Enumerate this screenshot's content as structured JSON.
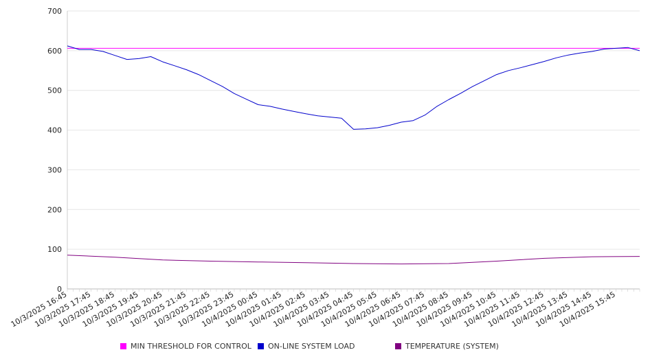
{
  "chart_data": {
    "type": "line",
    "title": "",
    "xlabel": "",
    "ylabel": "",
    "ylim": [
      0,
      700
    ],
    "yticks": [
      0,
      100,
      200,
      300,
      400,
      500,
      600,
      700
    ],
    "grid": true,
    "legend_position": "bottom",
    "x_start": "10/3/2025 16:45",
    "x_end": "10/4/2025 16:45",
    "x_tick_labels": [
      "10/3/2025 16:45",
      "10/3/2025 17:45",
      "10/3/2025 18:45",
      "10/3/2025 19:45",
      "10/3/2025 20:45",
      "10/3/2025 21:45",
      "10/3/2025 22:45",
      "10/3/2025 23:45",
      "10/4/2025 00:45",
      "10/4/2025 01:45",
      "10/4/2025 02:45",
      "10/4/2025 03:45",
      "10/4/2025 04:45",
      "10/4/2025 05:45",
      "10/4/2025 06:45",
      "10/4/2025 07:45",
      "10/4/2025 08:45",
      "10/4/2025 09:45",
      "10/4/2025 10:45",
      "10/4/2025 11:45",
      "10/4/2025 12:45",
      "10/4/2025 13:45",
      "10/4/2025 14:45",
      "10/4/2025 15:45"
    ],
    "series": [
      {
        "name": "MIN THRESHOLD FOR CONTROL",
        "color": "#ff00ff",
        "x": [
          "10/3/2025 16:45",
          "10/4/2025 16:45"
        ],
        "values": [
          606,
          606
        ]
      },
      {
        "name": "ON-LINE SYSTEM LOAD",
        "color": "#0000cc",
        "x": [
          "10/3/2025 16:45",
          "10/3/2025 17:15",
          "10/3/2025 17:45",
          "10/3/2025 18:15",
          "10/3/2025 18:45",
          "10/3/2025 19:15",
          "10/3/2025 19:45",
          "10/3/2025 20:15",
          "10/3/2025 20:45",
          "10/3/2025 21:15",
          "10/3/2025 21:45",
          "10/3/2025 22:15",
          "10/3/2025 22:45",
          "10/3/2025 23:15",
          "10/3/2025 23:45",
          "10/4/2025 00:15",
          "10/4/2025 00:45",
          "10/4/2025 01:15",
          "10/4/2025 01:45",
          "10/4/2025 02:15",
          "10/4/2025 02:45",
          "10/4/2025 03:15",
          "10/4/2025 03:45",
          "10/4/2025 04:15",
          "10/4/2025 04:45",
          "10/4/2025 05:15",
          "10/4/2025 05:45",
          "10/4/2025 06:15",
          "10/4/2025 06:45",
          "10/4/2025 07:15",
          "10/4/2025 07:45",
          "10/4/2025 08:15",
          "10/4/2025 08:45",
          "10/4/2025 09:15",
          "10/4/2025 09:45",
          "10/4/2025 10:15",
          "10/4/2025 10:45",
          "10/4/2025 11:15",
          "10/4/2025 11:45",
          "10/4/2025 12:15",
          "10/4/2025 12:45",
          "10/4/2025 13:15",
          "10/4/2025 13:45",
          "10/4/2025 14:15",
          "10/4/2025 14:45",
          "10/4/2025 15:15",
          "10/4/2025 15:45",
          "10/4/2025 16:15",
          "10/4/2025 16:45"
        ],
        "values": [
          612,
          603,
          603,
          598,
          588,
          578,
          580,
          585,
          572,
          562,
          552,
          540,
          525,
          510,
          492,
          478,
          464,
          460,
          453,
          447,
          441,
          436,
          433,
          430,
          402,
          403,
          406,
          412,
          420,
          424,
          438,
          460,
          477,
          493,
          510,
          525,
          540,
          550,
          557,
          565,
          573,
          582,
          589,
          594,
          598,
          604,
          606,
          608,
          600
        ]
      },
      {
        "name": "TEMPERATURE (SYSTEM)",
        "color": "#800080",
        "x": [
          "10/3/2025 16:45",
          "10/3/2025 18:45",
          "10/3/2025 20:45",
          "10/3/2025 22:45",
          "10/4/2025 00:45",
          "10/4/2025 02:45",
          "10/4/2025 04:45",
          "10/4/2025 06:45",
          "10/4/2025 08:45",
          "10/4/2025 10:45",
          "10/4/2025 12:45",
          "10/4/2025 14:45",
          "10/4/2025 16:45"
        ],
        "values": [
          85,
          80,
          73,
          70,
          68,
          66,
          64,
          63,
          64,
          70,
          77,
          81,
          82
        ]
      }
    ]
  }
}
